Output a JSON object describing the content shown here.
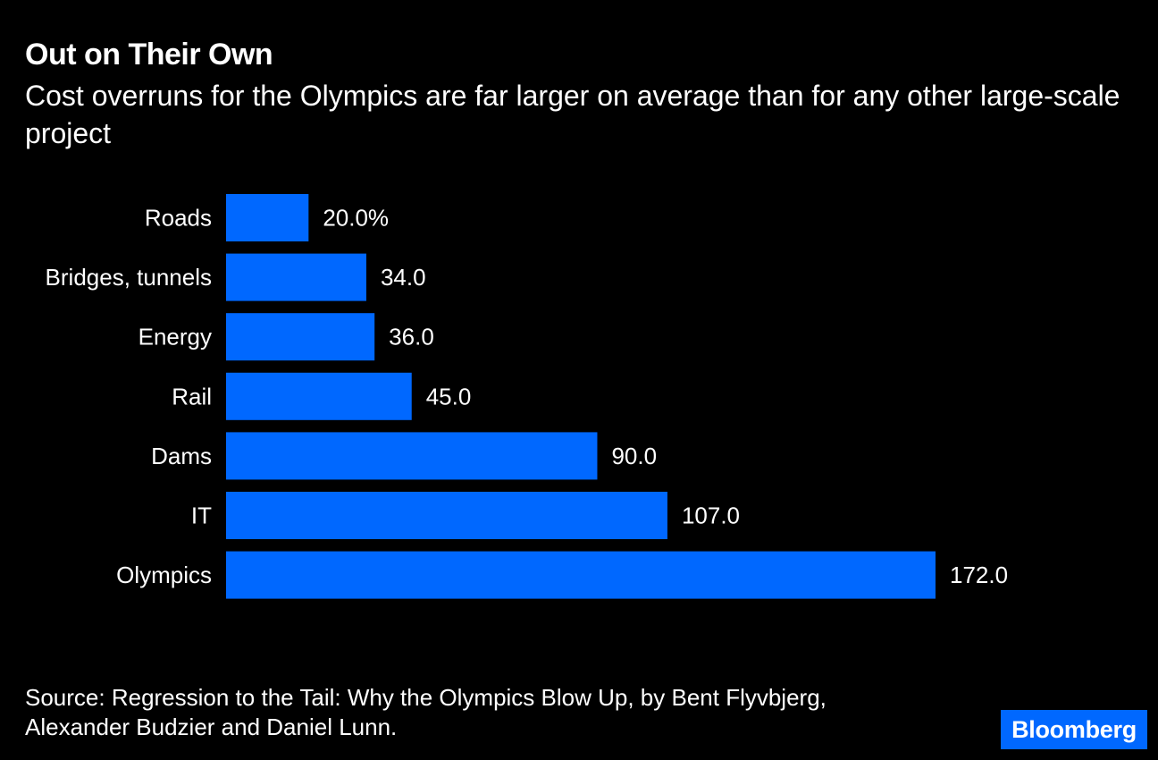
{
  "title": "Out on Their Own",
  "subtitle": "Cost overruns for the Olympics are far larger on average than for any other large-scale project",
  "source": "Source: Regression to the Tail: Why the Olympics Blow Up, by Bent Flyvbjerg, Alexander Budzier and Daniel Lunn.",
  "logo_text": "Bloomberg",
  "colors": {
    "background": "#000000",
    "bar": "#0068ff",
    "text": "#ffffff",
    "logo_bg": "#0068ff"
  },
  "chart_data": {
    "type": "bar",
    "orientation": "horizontal",
    "categories": [
      "Roads",
      "Bridges, tunnels",
      "Energy",
      "Rail",
      "Dams",
      "IT",
      "Olympics"
    ],
    "values": [
      20.0,
      34.0,
      36.0,
      45.0,
      90.0,
      107.0,
      172.0
    ],
    "value_labels": [
      "20.0%",
      "34.0",
      "36.0",
      "45.0",
      "90.0",
      "107.0",
      "172.0"
    ],
    "unit": "%",
    "xlim": [
      0,
      172.0
    ],
    "grid": false,
    "legend": "none"
  }
}
